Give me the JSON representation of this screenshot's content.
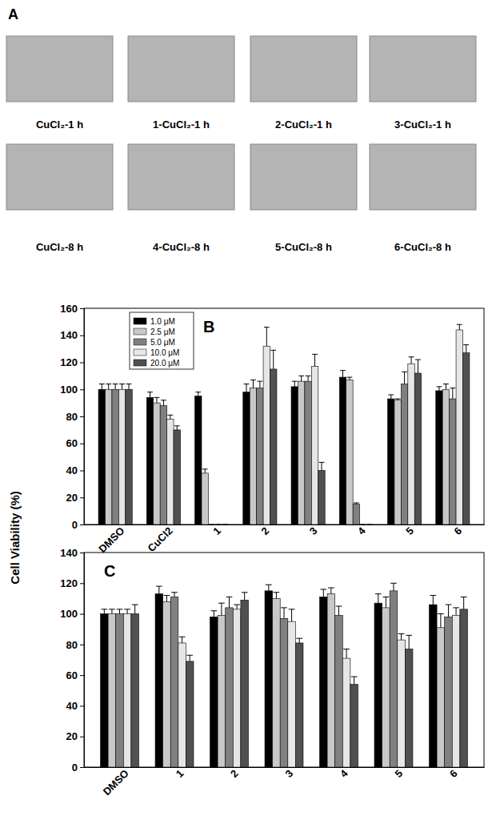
{
  "panel_a": {
    "label": "A",
    "captions": [
      "CuCl₂-1 h",
      "1-CuCl₂-1 h",
      "2-CuCl₂-1 h",
      "3-CuCl₂-1 h",
      "CuCl₂-8 h",
      "4-CuCl₂-8 h",
      "5-CuCl₂-8 h",
      "6-CuCl₂-8 h"
    ]
  },
  "chart_data": [
    {
      "type": "bar",
      "title": "B",
      "y_label": "Cell Viability (%)",
      "categories": [
        "DMSO",
        "CuCl2",
        "1",
        "2",
        "3",
        "4",
        "5",
        "6"
      ],
      "ylim": [
        0,
        160
      ],
      "yticks": [
        0,
        20,
        40,
        60,
        80,
        100,
        120,
        140,
        160
      ],
      "legend": "top-left",
      "series": [
        {
          "name": "1.0 μM",
          "color": "#000000",
          "values": [
            100,
            94,
            95,
            98,
            102,
            109,
            93,
            99
          ],
          "errors": [
            4,
            4,
            3,
            6,
            4,
            5,
            3,
            3
          ]
        },
        {
          "name": "2.5 μM",
          "color": "#c8c8c8",
          "values": [
            100,
            90,
            38,
            101,
            106,
            107,
            92,
            100
          ],
          "errors": [
            4,
            4,
            3,
            6,
            4,
            2,
            1,
            4
          ]
        },
        {
          "name": "5.0 μM",
          "color": "#808080",
          "values": [
            100,
            88,
            0,
            101,
            106,
            15,
            104,
            93
          ],
          "errors": [
            4,
            4,
            0,
            5,
            4,
            1,
            9,
            8
          ]
        },
        {
          "name": "10.0 μM",
          "color": "#e6e6e6",
          "values": [
            100,
            78,
            0,
            132,
            117,
            0,
            119,
            144
          ],
          "errors": [
            4,
            3,
            0,
            14,
            9,
            0,
            5,
            4
          ]
        },
        {
          "name": "20.0 μM",
          "color": "#505050",
          "values": [
            100,
            70,
            0,
            115,
            40,
            0,
            112,
            127
          ],
          "errors": [
            4,
            3,
            0,
            14,
            6,
            0,
            10,
            6
          ]
        }
      ]
    },
    {
      "type": "bar",
      "title": "C",
      "categories": [
        "DMSO",
        "1",
        "2",
        "3",
        "4",
        "5",
        "6"
      ],
      "ylim": [
        0,
        140
      ],
      "yticks": [
        0,
        20,
        40,
        60,
        80,
        100,
        120,
        140
      ],
      "series": [
        {
          "color": "#000000",
          "values": [
            100,
            113,
            98,
            115,
            111,
            107,
            106
          ],
          "errors": [
            3,
            5,
            4,
            4,
            5,
            6,
            6
          ]
        },
        {
          "color": "#c8c8c8",
          "values": [
            100,
            108,
            99,
            110,
            113,
            104,
            91
          ],
          "errors": [
            3,
            4,
            8,
            4,
            4,
            7,
            9
          ]
        },
        {
          "color": "#808080",
          "values": [
            100,
            111,
            104,
            97,
            99,
            115,
            98
          ],
          "errors": [
            3,
            3,
            7,
            7,
            6,
            5,
            8
          ]
        },
        {
          "color": "#e6e6e6",
          "values": [
            100,
            81,
            103,
            95,
            71,
            83,
            99
          ],
          "errors": [
            3,
            4,
            3,
            8,
            6,
            4,
            5
          ]
        },
        {
          "color": "#505050",
          "values": [
            100,
            69,
            109,
            81,
            54,
            77,
            103
          ],
          "errors": [
            6,
            4,
            5,
            3,
            5,
            9,
            8
          ]
        }
      ]
    }
  ]
}
